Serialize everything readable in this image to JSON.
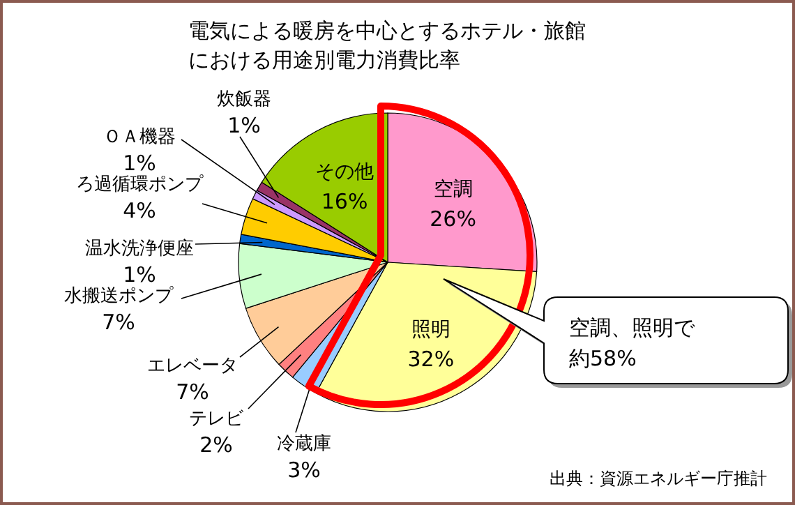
{
  "chart_data": {
    "type": "pie",
    "title": "電気による暖房を中心とするホテル・旅館における用途別電力消費比率",
    "categories": [
      "空調",
      "照明",
      "冷蔵庫",
      "テレビ",
      "エレベータ",
      "水搬送ポンプ",
      "温水洗浄便座",
      "ろ過循環ポンプ",
      "ＯＡ機器",
      "炊飯器",
      "その他"
    ],
    "values": [
      26,
      32,
      3,
      2,
      7,
      7,
      1,
      4,
      1,
      1,
      16
    ],
    "value_labels": [
      "26%",
      "32%",
      "3%",
      "2%",
      "7%",
      "7%",
      "1%",
      "4%",
      "1%",
      "1%",
      "16%"
    ],
    "colors": [
      "#ff99cc",
      "#ffff99",
      "#99ccff",
      "#ff8080",
      "#ffcc99",
      "#ccffcc",
      "#0066cc",
      "#ffcc00",
      "#cc99ff",
      "#993366",
      "#99cc00"
    ],
    "annotations": [
      "空調、照明で約58%",
      "出典：資源エネルギー庁推計"
    ]
  }
}
